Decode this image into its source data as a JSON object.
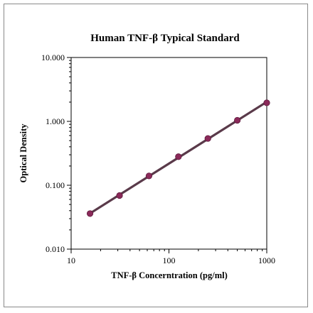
{
  "chart_data": {
    "type": "scatter",
    "title": "Human TNF-β Typical Standard",
    "xlabel": "TNF-β Concerntration (pg/ml)",
    "ylabel": "Optical Density",
    "xscale": "log",
    "yscale": "log",
    "xlim": [
      10,
      1000
    ],
    "ylim": [
      0.01,
      10
    ],
    "xticks": [
      10,
      100,
      1000
    ],
    "xtick_labels": [
      "10",
      "100",
      "1000"
    ],
    "yticks": [
      0.01,
      0.1,
      1,
      10
    ],
    "ytick_labels": [
      "0.010",
      "0.100",
      "1.000",
      "10.000"
    ],
    "grid": false,
    "series": [
      {
        "x": [
          15.6,
          31.25,
          62.5,
          125,
          250,
          500,
          1000
        ],
        "y": [
          0.036,
          0.069,
          0.14,
          0.28,
          0.54,
          1.04,
          1.95
        ],
        "marker_color": "#8b2a5a",
        "line_color": "#5a3a4a",
        "fit_line": true
      }
    ]
  }
}
